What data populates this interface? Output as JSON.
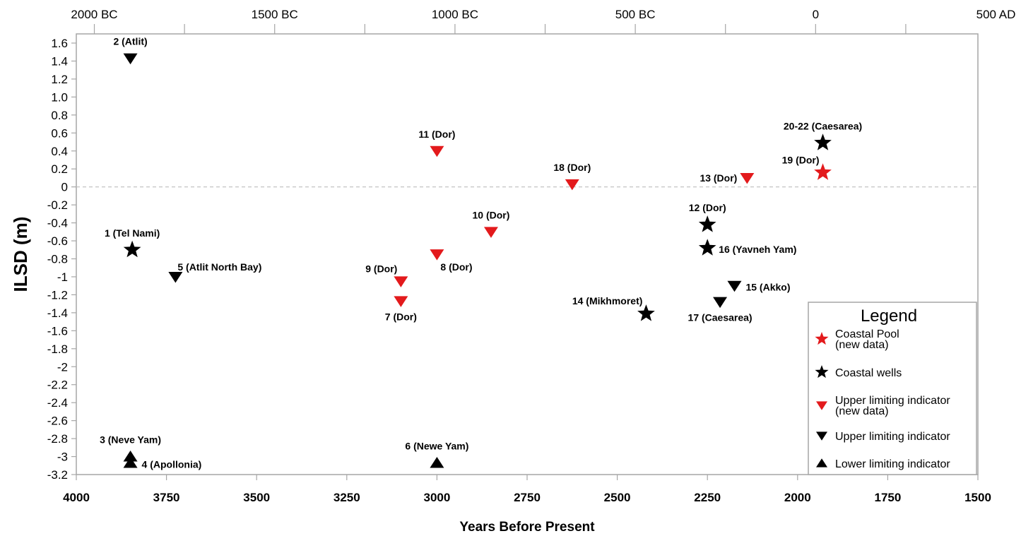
{
  "chart_data": {
    "type": "scatter",
    "ylabel": "ILSD (m)",
    "xlabel": "Years Before Present",
    "xlim": [
      4000,
      1500
    ],
    "x_reversed": true,
    "ylim": [
      -3.2,
      1.6
    ],
    "x_ticks": [
      "4000",
      "3750",
      "3500",
      "3250",
      "3000",
      "2750",
      "2500",
      "2250",
      "2000",
      "1750",
      "1500"
    ],
    "x_tick_values": [
      4000,
      3750,
      3500,
      3250,
      3000,
      2750,
      2500,
      2250,
      2000,
      1750,
      1500
    ],
    "y_ticks": [
      "1.6",
      "1.4",
      "1.2",
      "1.0",
      "0.8",
      "0.6",
      "0.4",
      "0.2",
      "0",
      "-0.2",
      "-0.4",
      "-0.6",
      "-0.8",
      "-1",
      "-1.2",
      "-1.4",
      "-1.6",
      "-1.8",
      "-2",
      "-2.2",
      "-2.4",
      "-2.6",
      "-2.8",
      "-3",
      "-3.2"
    ],
    "y_tick_values": [
      1.6,
      1.4,
      1.2,
      1.0,
      0.8,
      0.6,
      0.4,
      0.2,
      0,
      -0.2,
      -0.4,
      -0.6,
      -0.8,
      -1,
      -1.2,
      -1.4,
      -1.6,
      -1.8,
      -2,
      -2.2,
      -2.4,
      -2.6,
      -2.8,
      -3,
      -3.2
    ],
    "top_axis_ticks": [
      "2000 BC",
      "1500 BC",
      "1000 BC",
      "500 BC",
      "0",
      "500 AD"
    ],
    "top_axis_tick_values": [
      3950,
      3450,
      2950,
      2450,
      1950,
      1450
    ],
    "top_axis_minor_values": [
      3700,
      3200,
      2700,
      2200,
      1700
    ],
    "zero_line": true,
    "grid": false,
    "legend_placement": "bottom-right",
    "legend": {
      "title": "Legend",
      "entries": [
        {
          "lines": [
            "Coastal Pool",
            "(new data)"
          ],
          "marker": "star",
          "color": "#e31a1c"
        },
        {
          "lines": [
            "Coastal wells"
          ],
          "marker": "star",
          "color": "#000000"
        },
        {
          "lines": [
            "Upper limiting indicator",
            "(new data)"
          ],
          "marker": "triangle-down",
          "color": "#e31a1c"
        },
        {
          "lines": [
            "Upper limiting indicator"
          ],
          "marker": "triangle-down",
          "color": "#000000"
        },
        {
          "lines": [
            "Lower limiting indicator"
          ],
          "marker": "triangle-up",
          "color": "#000000"
        }
      ]
    },
    "points": [
      {
        "label": "1 (Tel Nami)",
        "x": 3845,
        "y": -0.7,
        "marker": "star",
        "color": "#000000",
        "label_pos": "above"
      },
      {
        "label": "2 (Atlit)",
        "x": 3850,
        "y": 1.43,
        "marker": "triangle-down",
        "color": "#000000",
        "label_pos": "above"
      },
      {
        "label": "3 (Neve Yam)",
        "x": 3850,
        "y": -3.0,
        "marker": "triangle-up",
        "color": "#000000",
        "label_pos": "above"
      },
      {
        "label": "4 (Apollonia)",
        "x": 3850,
        "y": -3.07,
        "marker": "triangle-up",
        "color": "#000000",
        "label_pos": "right"
      },
      {
        "label": "5 (Atlit North Bay)",
        "x": 3725,
        "y": -1.0,
        "marker": "triangle-down",
        "color": "#000000",
        "label_pos": "above-right"
      },
      {
        "label": "6 (Newe Yam)",
        "x": 3000,
        "y": -3.07,
        "marker": "triangle-up",
        "color": "#000000",
        "label_pos": "above"
      },
      {
        "label": "7 (Dor)",
        "x": 3100,
        "y": -1.27,
        "marker": "triangle-down",
        "color": "#e31a1c",
        "label_pos": "below"
      },
      {
        "label": "8 (Dor)",
        "x": 3000,
        "y": -0.75,
        "marker": "triangle-down",
        "color": "#e31a1c",
        "label_pos": "below-right"
      },
      {
        "label": "9 (Dor)",
        "x": 3100,
        "y": -1.05,
        "marker": "triangle-down",
        "color": "#e31a1c",
        "label_pos": "above-left"
      },
      {
        "label": "10 (Dor)",
        "x": 2850,
        "y": -0.5,
        "marker": "triangle-down",
        "color": "#e31a1c",
        "label_pos": "above"
      },
      {
        "label": "11 (Dor)",
        "x": 3000,
        "y": 0.4,
        "marker": "triangle-down",
        "color": "#e31a1c",
        "label_pos": "above"
      },
      {
        "label": "12 (Dor)",
        "x": 2250,
        "y": -0.42,
        "marker": "star",
        "color": "#000000",
        "label_pos": "above"
      },
      {
        "label": "13 (Dor)",
        "x": 2140,
        "y": 0.1,
        "marker": "triangle-down",
        "color": "#e31a1c",
        "label_pos": "left"
      },
      {
        "label": "14 (Mikhmoret)",
        "x": 2420,
        "y": -1.41,
        "marker": "star",
        "color": "#000000",
        "label_pos": "above-left"
      },
      {
        "label": "15 (Akko)",
        "x": 2175,
        "y": -1.1,
        "marker": "triangle-down",
        "color": "#000000",
        "label_pos": "right"
      },
      {
        "label": "16 (Yavneh Yam)",
        "x": 2250,
        "y": -0.68,
        "marker": "star",
        "color": "#000000",
        "label_pos": "right"
      },
      {
        "label": "17 (Caesarea)",
        "x": 2215,
        "y": -1.28,
        "marker": "triangle-down",
        "color": "#000000",
        "label_pos": "below"
      },
      {
        "label": "18 (Dor)",
        "x": 2625,
        "y": 0.03,
        "marker": "triangle-down",
        "color": "#e31a1c",
        "label_pos": "above"
      },
      {
        "label": "19 (Dor)",
        "x": 1930,
        "y": 0.16,
        "marker": "star",
        "color": "#e31a1c",
        "label_pos": "above-left"
      },
      {
        "label": "20-22 (Caesarea)",
        "x": 1930,
        "y": 0.49,
        "marker": "star",
        "color": "#000000",
        "label_pos": "above"
      }
    ]
  }
}
